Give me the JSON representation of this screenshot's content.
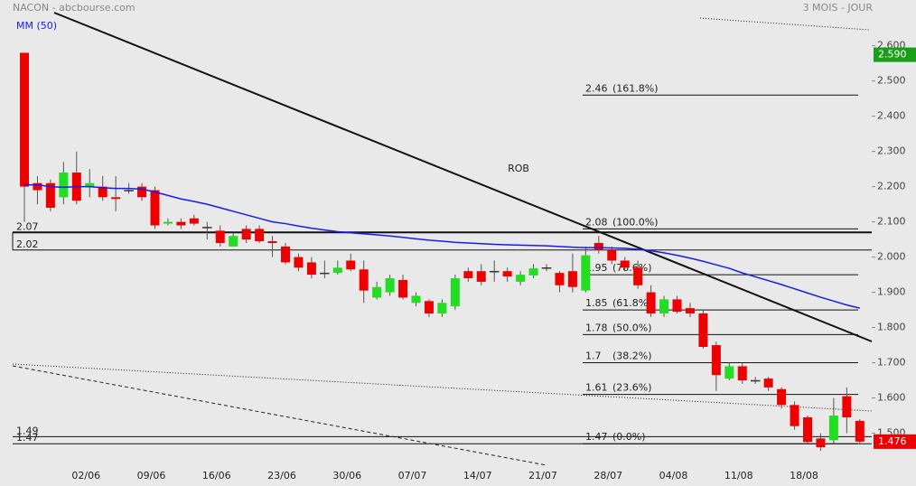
{
  "chart_data": {
    "type": "candlestick",
    "title": "NACON - abcbourse.com",
    "subtitle": "3 MOIS - JOUR",
    "annotation": "ROB",
    "categories": [
      null,
      null,
      null,
      null,
      null,
      "02/06",
      null,
      null,
      null,
      null,
      "09/06",
      null,
      null,
      null,
      null,
      "16/06",
      null,
      null,
      null,
      null,
      "23/06",
      null,
      null,
      null,
      null,
      "30/06",
      null,
      null,
      null,
      null,
      "07/07",
      null,
      null,
      null,
      null,
      "14/07",
      null,
      null,
      null,
      null,
      "21/07",
      null,
      null,
      null,
      null,
      "28/07",
      null,
      null,
      null,
      null,
      "04/08",
      null,
      null,
      null,
      null,
      "11/08",
      null,
      null,
      null,
      null,
      "18/08",
      null,
      null,
      null,
      null
    ],
    "open": [
      2.58,
      2.21,
      2.21,
      2.17,
      2.24,
      2.2,
      2.2,
      2.17,
      2.19,
      2.2,
      2.19,
      2.095,
      2.1,
      2.11,
      2.085,
      2.075,
      2.03,
      2.08,
      2.08,
      2.045,
      2.03,
      2.0,
      1.985,
      1.955,
      1.955,
      1.99,
      1.965,
      1.885,
      1.9,
      1.935,
      1.87,
      1.875,
      1.84,
      1.86,
      1.96,
      1.96,
      1.96,
      1.96,
      1.93,
      1.948,
      1.97,
      1.955,
      1.96,
      1.905,
      2.04,
      2.02,
      1.99,
      1.97,
      1.9,
      1.84,
      1.88,
      1.855,
      1.84,
      1.75,
      1.655,
      1.69,
      1.65,
      1.655,
      1.625,
      1.58,
      1.545,
      1.485,
      1.48,
      1.605,
      1.535
    ],
    "high": [
      2.58,
      2.23,
      2.22,
      2.27,
      2.3,
      2.25,
      2.23,
      2.23,
      2.21,
      2.21,
      2.2,
      2.11,
      2.11,
      2.12,
      2.1,
      2.09,
      2.07,
      2.09,
      2.09,
      2.06,
      2.04,
      2.01,
      2.0,
      1.99,
      1.99,
      2.01,
      1.99,
      1.93,
      1.95,
      1.95,
      1.9,
      1.88,
      1.88,
      1.95,
      1.97,
      1.98,
      1.99,
      1.97,
      1.96,
      1.98,
      1.98,
      1.96,
      2.01,
      2.03,
      2.06,
      2.03,
      2.0,
      1.99,
      1.92,
      1.89,
      1.89,
      1.87,
      1.85,
      1.76,
      1.7,
      1.7,
      1.66,
      1.66,
      1.63,
      1.59,
      1.55,
      1.5,
      1.6,
      1.63,
      1.54
    ],
    "low": [
      2.1,
      2.15,
      2.13,
      2.15,
      2.15,
      2.17,
      2.16,
      2.13,
      2.18,
      2.16,
      2.08,
      2.09,
      2.08,
      2.09,
      2.05,
      2.03,
      2.03,
      2.04,
      2.04,
      2.0,
      1.98,
      1.96,
      1.94,
      1.94,
      1.95,
      1.96,
      1.87,
      1.88,
      1.89,
      1.88,
      1.86,
      1.83,
      1.83,
      1.85,
      1.93,
      1.92,
      1.93,
      1.93,
      1.92,
      1.94,
      1.96,
      1.9,
      1.9,
      1.9,
      2.01,
      1.98,
      1.96,
      1.91,
      1.83,
      1.83,
      1.84,
      1.83,
      1.74,
      1.62,
      1.65,
      1.64,
      1.64,
      1.62,
      1.57,
      1.51,
      1.47,
      1.45,
      1.47,
      1.5,
      1.47
    ],
    "close": [
      2.2,
      2.19,
      2.14,
      2.24,
      2.16,
      2.21,
      2.17,
      2.165,
      2.19,
      2.17,
      2.09,
      2.1,
      2.09,
      2.095,
      2.085,
      2.04,
      2.06,
      2.05,
      2.045,
      2.04,
      1.985,
      1.97,
      1.95,
      1.955,
      1.97,
      1.965,
      1.905,
      1.915,
      1.94,
      1.885,
      1.89,
      1.84,
      1.87,
      1.94,
      1.94,
      1.93,
      1.96,
      1.945,
      1.95,
      1.968,
      1.97,
      1.92,
      1.915,
      2.005,
      2.02,
      1.99,
      1.97,
      1.92,
      1.84,
      1.88,
      1.845,
      1.84,
      1.745,
      1.665,
      1.69,
      1.65,
      1.65,
      1.63,
      1.58,
      1.52,
      1.475,
      1.46,
      1.55,
      1.545,
      1.476
    ],
    "up_color": "#22dd22",
    "down_color": "#ee0000",
    "series": [
      {
        "name": "MM (50)",
        "color": "#1a1aee",
        "values": [
          2.205,
          2.205,
          2.2,
          2.198,
          2.2,
          2.2,
          2.197,
          2.195,
          2.195,
          2.193,
          2.185,
          2.175,
          2.165,
          2.158,
          2.15,
          2.14,
          2.13,
          2.12,
          2.11,
          2.1,
          2.095,
          2.088,
          2.082,
          2.077,
          2.072,
          2.069,
          2.066,
          2.063,
          2.06,
          2.056,
          2.052,
          2.048,
          2.045,
          2.042,
          2.04,
          2.038,
          2.036,
          2.035,
          2.034,
          2.033,
          2.032,
          2.03,
          2.028,
          2.027,
          2.027,
          2.026,
          2.025,
          2.022,
          2.018,
          2.012,
          2.005,
          1.997,
          1.988,
          1.978,
          1.968,
          1.955,
          1.944,
          1.933,
          1.922,
          1.91,
          1.898,
          1.886,
          1.875,
          1.864,
          1.855
        ]
      }
    ],
    "ylim": [
      1.35,
      2.73
    ],
    "yticks": [
      {
        "value": 1.5,
        "label": "1.500"
      },
      {
        "value": 1.6,
        "label": "1.600"
      },
      {
        "value": 1.7,
        "label": "1.700"
      },
      {
        "value": 1.8,
        "label": "1.800"
      },
      {
        "value": 1.9,
        "label": "1.900"
      },
      {
        "value": 2.0,
        "label": "2.000"
      },
      {
        "value": 2.1,
        "label": "2.100"
      },
      {
        "value": 2.2,
        "label": "2.200"
      },
      {
        "value": 2.3,
        "label": "2.300"
      },
      {
        "value": 2.4,
        "label": "2.400"
      },
      {
        "value": 2.5,
        "label": "2.500"
      },
      {
        "value": 2.6,
        "label": "2.600"
      }
    ],
    "levels": [
      2.07,
      2.02,
      1.49,
      1.47
    ],
    "fibonacci": [
      {
        "value": 2.46,
        "ratio": "(161.8%)"
      },
      {
        "value": 2.08,
        "ratio": "(100.0%)"
      },
      {
        "value": 1.95,
        "ratio": "(78.6%)"
      },
      {
        "value": 1.85,
        "ratio": "(61.8%)"
      },
      {
        "value": 1.78,
        "ratio": "(50.0%)"
      },
      {
        "value": 1.7,
        "ratio": "(38.2%)"
      },
      {
        "value": 1.61,
        "ratio": "(23.6%)"
      },
      {
        "value": 1.47,
        "ratio": "(0.0%)"
      }
    ],
    "price_markers": [
      {
        "value": 2.59,
        "label": "2.590",
        "color": "#1a9e1a"
      },
      {
        "value": 1.476,
        "label": "1.476",
        "color": "#ee0000"
      }
    ]
  }
}
